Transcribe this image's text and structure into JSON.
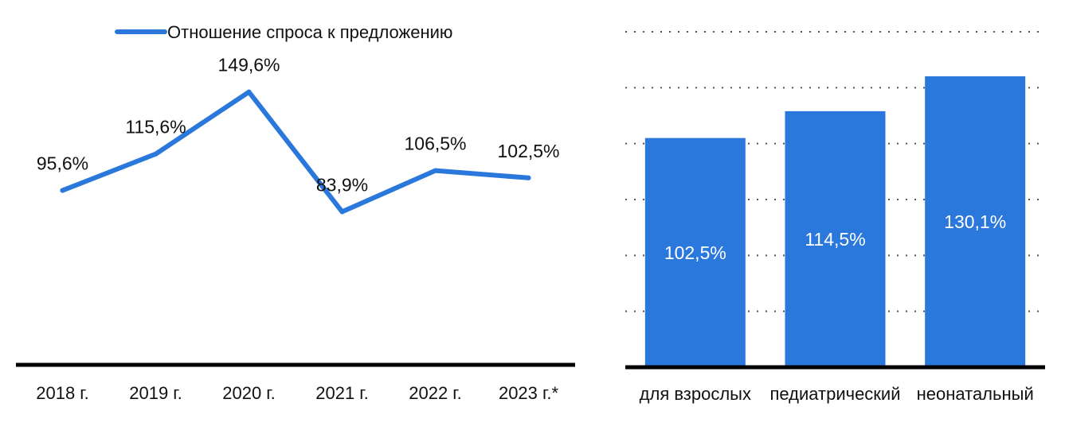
{
  "colors": {
    "series": "#2b78dc",
    "axis": "#000000",
    "grid": "#555555",
    "text": "#111111",
    "bar_label": "#ffffff"
  },
  "chart_data": [
    {
      "type": "line",
      "legend": {
        "label": "Отношение спроса к предложению",
        "position": "top"
      },
      "categories": [
        "2018 г.",
        "2019 г.",
        "2020 г.",
        "2021 г.",
        "2022 г.",
        "2023 г.*"
      ],
      "series": [
        {
          "name": "Отношение спроса к предложению",
          "values": [
            95.6,
            115.6,
            149.6,
            83.9,
            106.5,
            102.5
          ],
          "labels": [
            "95,6%",
            "115,6%",
            "149,6%",
            "83,9%",
            "106,5%",
            "102,5%"
          ]
        }
      ],
      "ylim": [
        0,
        200
      ],
      "grid": false
    },
    {
      "type": "bar",
      "categories": [
        "для взрослых",
        "педиатрический",
        "неонатальный"
      ],
      "values": [
        102.5,
        114.5,
        130.1
      ],
      "labels": [
        "102,5%",
        "114,5%",
        "130,1%"
      ],
      "ylim": [
        0,
        150
      ],
      "grid": true
    }
  ]
}
